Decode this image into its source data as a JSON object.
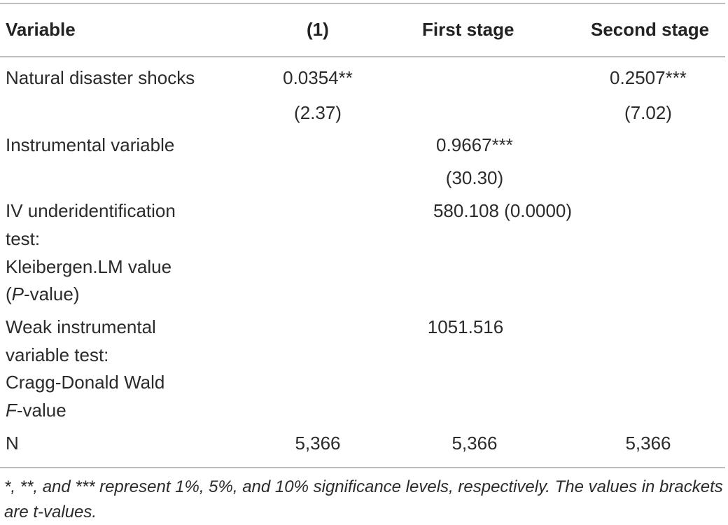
{
  "table": {
    "headers": [
      "Variable",
      "(1)",
      "First stage",
      "Second stage"
    ],
    "rows": [
      {
        "label": "Natural disaster shocks",
        "c1": "0.0354**",
        "c1_t": "(2.37)",
        "c2": "",
        "c2_t": "",
        "c3": "0.2507***",
        "c3_t": "(7.02)"
      },
      {
        "label": "Instrumental variable",
        "c1": "",
        "c1_t": "",
        "c2": "0.9667***",
        "c2_t": "(30.30)",
        "c3": "",
        "c3_t": ""
      },
      {
        "label_lines": [
          "IV underidentification",
          "test:",
          "Kleibergen.LM value"
        ],
        "label_last_italic": "P",
        "label_last_rest": "-value)",
        "label_last_open": "(",
        "c2": "580.108 (0.0000)"
      },
      {
        "label_lines": [
          "Weak instrumental",
          "variable test:",
          "Cragg-Donald Wald"
        ],
        "label_last_italic": "F",
        "label_last_rest": "-value",
        "c2": "1051.516"
      },
      {
        "label": "N",
        "c1": "5,366",
        "c2": "5,366",
        "c3": "5,366"
      }
    ],
    "note": "*, **, and *** represent 1%, 5%, and 10% significance levels, respectively. The values in brackets are t-values."
  }
}
